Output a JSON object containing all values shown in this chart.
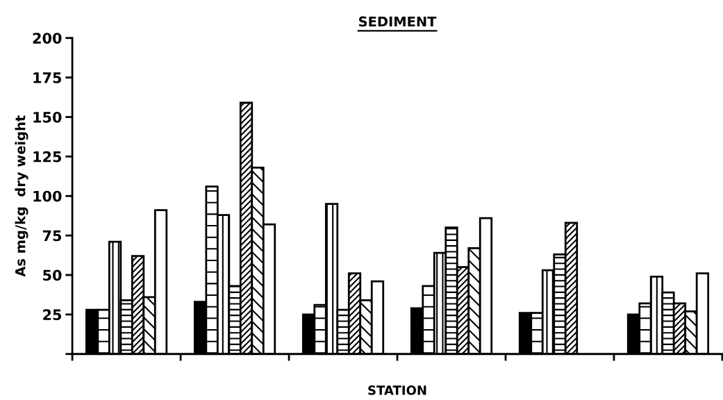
{
  "chart_data": {
    "type": "bar",
    "title": "SEDIMENT",
    "xlabel": "STATION",
    "ylabel": "As mg/kg  dry weight",
    "categories": [
      null,
      null,
      null,
      null,
      null,
      null
    ],
    "series": [
      {
        "color": "#000000",
        "values": [
          28,
          33,
          25,
          29,
          26,
          25
        ]
      },
      {
        "color": "#000000",
        "values": [
          28,
          106,
          31,
          43,
          26,
          32
        ]
      },
      {
        "color": "#000000",
        "values": [
          71,
          88,
          95,
          64,
          53,
          49
        ]
      },
      {
        "color": "#000000",
        "values": [
          34,
          43,
          28,
          80,
          63,
          39
        ]
      },
      {
        "color": "#000000",
        "values": [
          62,
          159,
          51,
          55,
          83,
          32
        ]
      },
      {
        "color": "#000000",
        "values": [
          36,
          118,
          34,
          67,
          null,
          27
        ]
      },
      {
        "color": "#ffffff",
        "values": [
          91,
          82,
          46,
          86,
          null,
          51
        ]
      }
    ],
    "ylim": [
      0,
      200
    ],
    "yticks": [
      {
        "value": 0,
        "label": null
      },
      25,
      50,
      75,
      100,
      125,
      150,
      175,
      200
    ],
    "grid": false
  }
}
